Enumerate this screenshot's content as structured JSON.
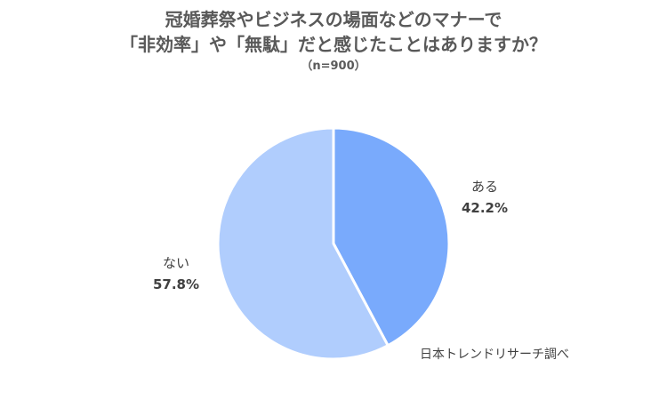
{
  "title_lines": [
    "冠婚葬祭やビジネスの場面などのマナーで",
    "「非効率」や「無駄」だと感じたことはありますか？"
  ],
  "subtitle": "（n=900）",
  "source": "日本トレンドリサーチ調べ",
  "chart_data": {
    "type": "pie",
    "title": "冠婚葬祭やビジネスの場面などのマナーで「非効率」や「無駄」だと感じたことはありますか？",
    "subtitle": "（n=900）",
    "unit": "%",
    "start_angle": "12 o'clock, clockwise",
    "legend": "none (labels beside slices)",
    "slices": [
      {
        "label": "ある",
        "value": 42.2,
        "display": "42.2%",
        "color": "#79aafc"
      },
      {
        "label": "ない",
        "value": 57.8,
        "display": "57.8%",
        "color": "#b0cdfd"
      }
    ]
  }
}
